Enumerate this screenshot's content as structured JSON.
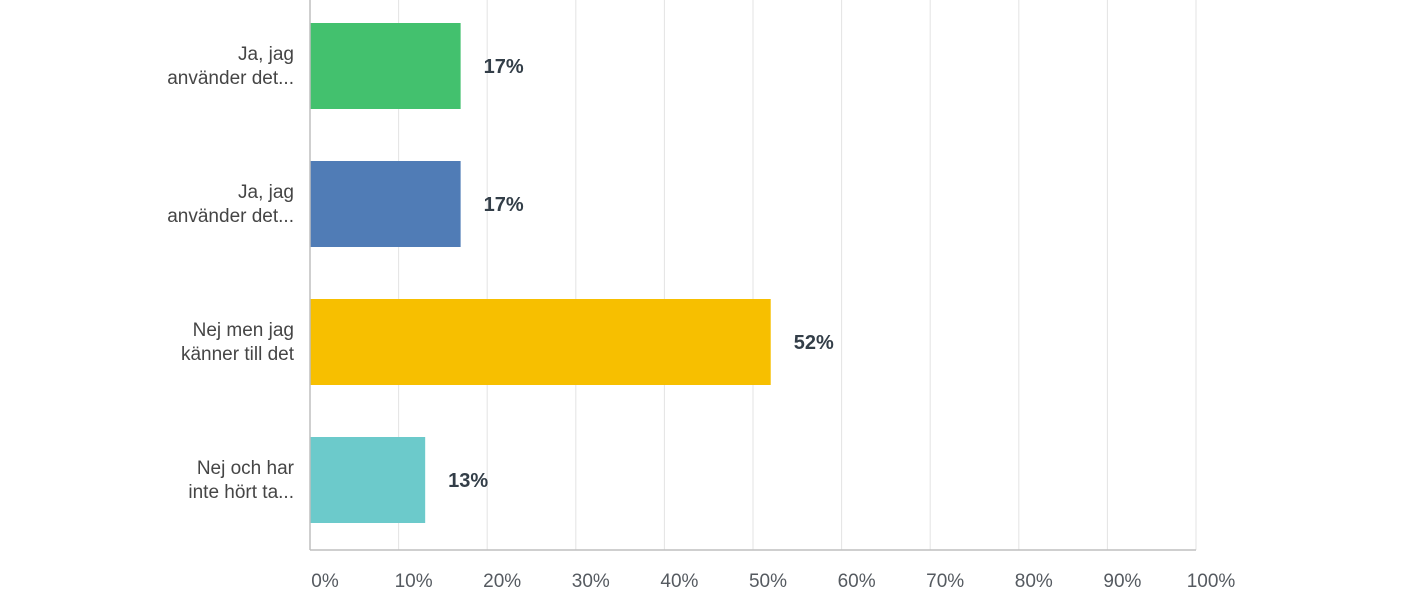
{
  "chart_data": {
    "type": "bar",
    "orientation": "horizontal",
    "title": "",
    "xlabel": "",
    "ylabel": "",
    "xlim": [
      0,
      100
    ],
    "grid": true,
    "legend": "none",
    "categories": [
      [
        "Ja, jag",
        "använder det..."
      ],
      [
        "Ja, jag",
        "använder det..."
      ],
      [
        "Nej men jag",
        "känner till det"
      ],
      [
        "Nej och har",
        "inte hört ta..."
      ]
    ],
    "values": [
      17,
      17,
      52,
      13
    ],
    "value_labels": [
      "17%",
      "17%",
      "52%",
      "13%"
    ],
    "colors": [
      "#43c16e",
      "#507cb6",
      "#f7bf00",
      "#6ccacb"
    ],
    "ticks": [
      0,
      10,
      20,
      30,
      40,
      50,
      60,
      70,
      80,
      90,
      100
    ],
    "tick_labels": [
      "0%",
      "10%",
      "20%",
      "30%",
      "40%",
      "50%",
      "60%",
      "70%",
      "80%",
      "90%",
      "100%"
    ]
  }
}
